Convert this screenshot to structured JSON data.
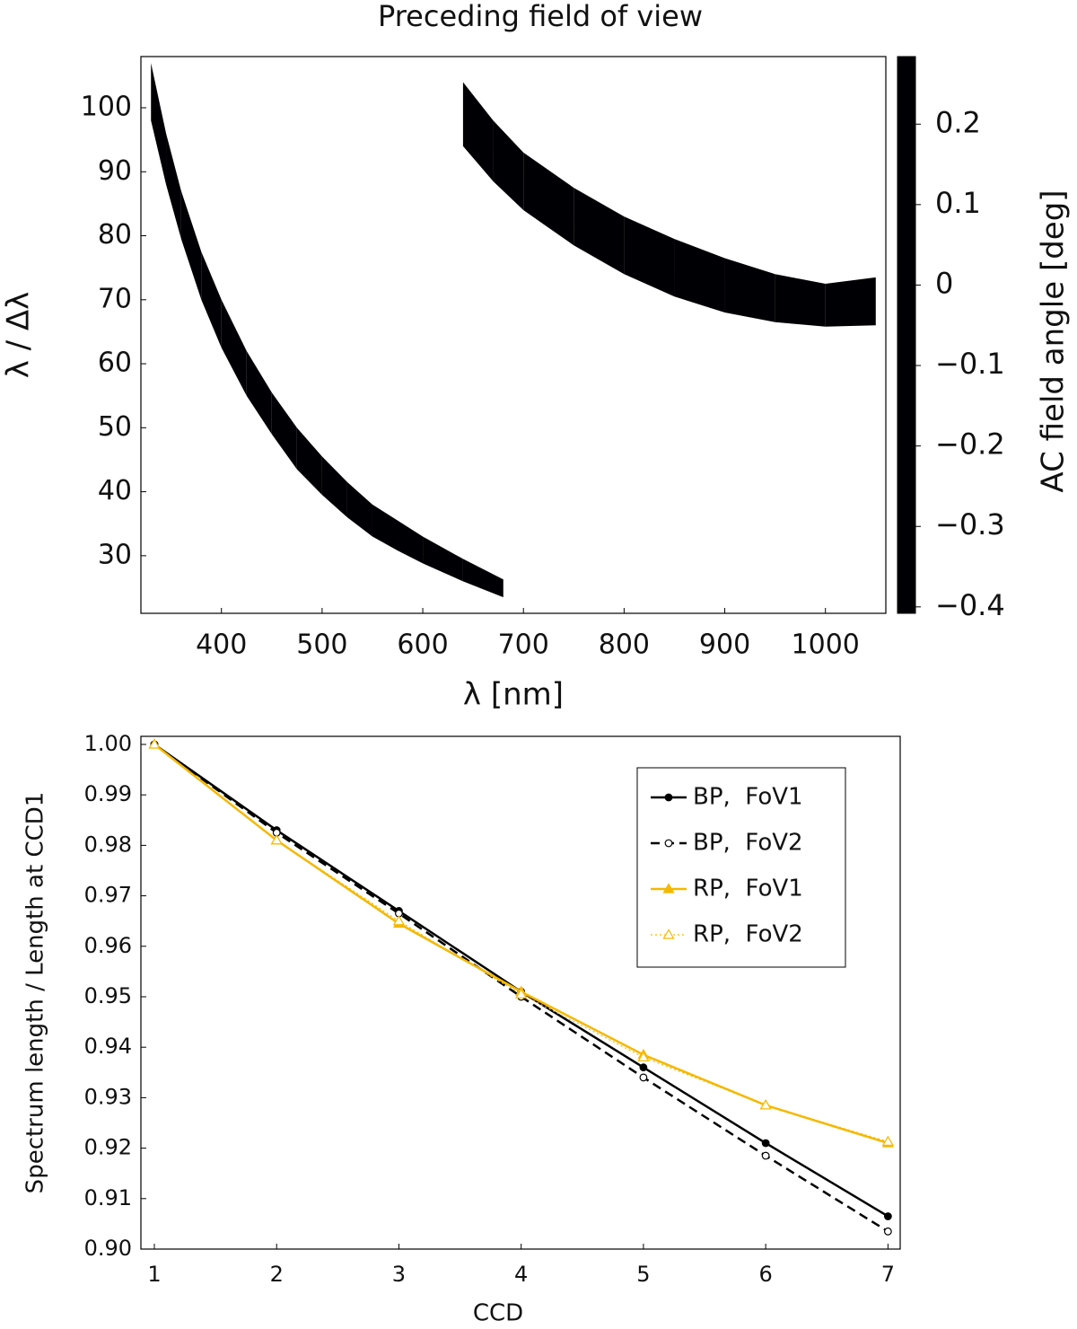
{
  "chart_data": [
    {
      "type": "band",
      "title": "Preceding field of view",
      "xlabel": "λ [nm]",
      "ylabel": "λ / Δλ",
      "xlim": [
        320,
        1060
      ],
      "ylim": [
        21,
        108
      ],
      "xticks": [
        400,
        500,
        600,
        700,
        800,
        900,
        1000
      ],
      "yticks": [
        30,
        40,
        50,
        60,
        70,
        80,
        90,
        100
      ],
      "series": [
        {
          "x": [
            330,
            345,
            360,
            380,
            400,
            425,
            450,
            475,
            500,
            525,
            550,
            575,
            600,
            640,
            680
          ],
          "upper": [
            107,
            96,
            87,
            77.5,
            70,
            62,
            55.5,
            50,
            45.5,
            41.5,
            38,
            35.5,
            33,
            29.5,
            26.3
          ],
          "lower": [
            98,
            88,
            79.5,
            70,
            62.5,
            55,
            49,
            43.5,
            39.5,
            36,
            33,
            30.8,
            28.8,
            26,
            23.5
          ]
        },
        {
          "x": [
            640,
            670,
            700,
            750,
            800,
            850,
            900,
            950,
            1000,
            1050
          ],
          "upper": [
            104,
            98,
            93,
            87.5,
            83,
            79.5,
            76.5,
            74,
            72.5,
            73.5
          ],
          "lower": [
            94,
            88.5,
            84,
            78.5,
            74,
            70.5,
            68,
            66.5,
            65.8,
            66
          ]
        }
      ],
      "colorbar": {
        "label": "AC field angle [deg]",
        "lim": [
          -0.408,
          0.284
        ],
        "ticks": [
          {
            "value": -0.4,
            "label": "−0.4"
          },
          {
            "value": -0.3,
            "label": "−0.3"
          },
          {
            "value": -0.2,
            "label": "−0.2"
          },
          {
            "value": -0.1,
            "label": "−0.1"
          },
          0,
          0.1,
          0.2
        ]
      }
    },
    {
      "type": "line",
      "xlabel": "CCD",
      "ylabel": "Spectrum length / Length at CCD1",
      "x": [
        1,
        2,
        3,
        4,
        5,
        6,
        7
      ],
      "xlim": [
        0.89,
        7.1
      ],
      "ylim": [
        0.9,
        1.0016
      ],
      "xticks": [
        1,
        2,
        3,
        4,
        5,
        6,
        7
      ],
      "yticks": [
        {
          "value": 0.9,
          "label": "0.90"
        },
        0.91,
        0.92,
        0.93,
        0.94,
        0.95,
        0.96,
        0.97,
        0.98,
        0.99,
        {
          "value": 1,
          "label": "1.00"
        }
      ],
      "legend": "upper right",
      "series": [
        {
          "name": "BP,  FoV1",
          "color": "#000000",
          "marker": "circle",
          "filled": true,
          "linestyle": "solid",
          "values": [
            1.0,
            0.983,
            0.967,
            0.951,
            0.936,
            0.921,
            0.9065
          ]
        },
        {
          "name": "BP,  FoV2",
          "color": "#000000",
          "marker": "circle",
          "filled": false,
          "linestyle": "dashed",
          "values": [
            1.0,
            0.9825,
            0.9665,
            0.95,
            0.934,
            0.9185,
            0.9035
          ]
        },
        {
          "name": "RP,  FoV1",
          "color": "#f5b800",
          "marker": "triangle",
          "filled": true,
          "linestyle": "solid",
          "values": [
            1.0,
            0.981,
            0.9645,
            0.951,
            0.9385,
            0.9285,
            0.921
          ]
        },
        {
          "name": "RP,  FoV2",
          "color": "#f5b800",
          "marker": "triangle",
          "filled": false,
          "linestyle": "dotted",
          "values": [
            1.0,
            0.981,
            0.965,
            0.9505,
            0.938,
            0.9285,
            0.9213
          ]
        }
      ]
    }
  ]
}
